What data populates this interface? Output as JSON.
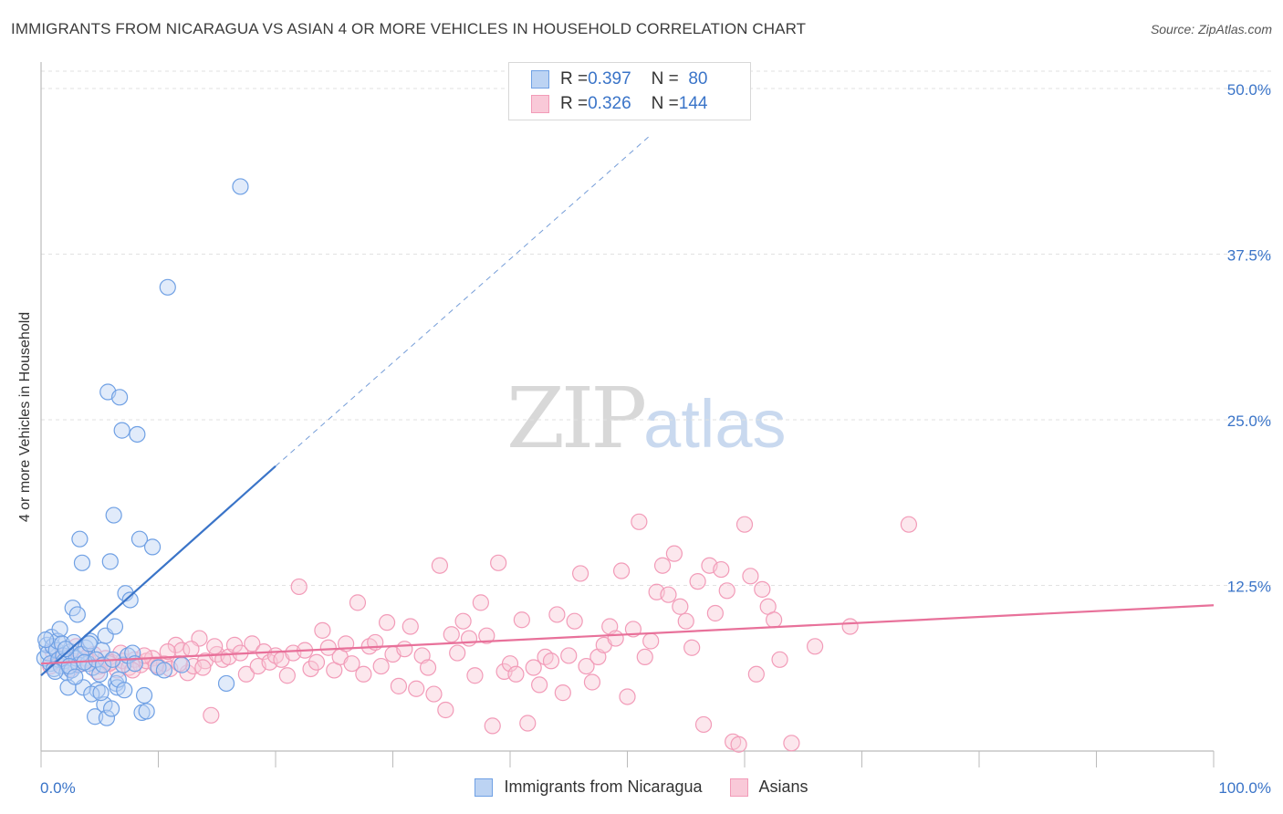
{
  "header": {
    "title": "IMMIGRANTS FROM NICARAGUA VS ASIAN 4 OR MORE VEHICLES IN HOUSEHOLD CORRELATION CHART",
    "source": "Source: ZipAtlas.com"
  },
  "watermark": {
    "zip": "ZIP",
    "atlas": "atlas"
  },
  "legend": {
    "rows": [
      {
        "r_label": "R = ",
        "r_value": "0.397",
        "n_label": "N = ",
        "n_value": "80"
      },
      {
        "r_label": "R = ",
        "r_value": "0.326",
        "n_label": "N = ",
        "n_value": "144"
      }
    ]
  },
  "chart_data": {
    "type": "scatter",
    "title": "IMMIGRANTS FROM NICARAGUA VS ASIAN 4 OR MORE VEHICLES IN HOUSEHOLD CORRELATION CHART",
    "xlabel": "",
    "ylabel": "4 or more Vehicles in Household",
    "xlim": [
      0,
      100
    ],
    "ylim": [
      0,
      52
    ],
    "x_tick_labels": [
      "0.0%",
      "100.0%"
    ],
    "y_tick_labels": [
      "12.5%",
      "25.0%",
      "37.5%",
      "50.0%"
    ],
    "y_ticks": [
      12.5,
      25.0,
      37.5,
      50.0
    ],
    "grid": true,
    "legend_placement": "top-center",
    "colors": {
      "nicaragua": "#6fa0e4",
      "asians": "#f29bb8",
      "nicaragua_line": "#3a74c8",
      "asians_line": "#e8719a",
      "tick_text": "#3a74c8"
    },
    "series": [
      {
        "name": "Immigrants from Nicaragua",
        "trend": {
          "x": [
            0,
            20
          ],
          "y": [
            5.7,
            21.5
          ],
          "dashed_to": [
            52,
            46.5
          ]
        },
        "points": [
          [
            0.3,
            7.0
          ],
          [
            0.5,
            8.0
          ],
          [
            0.6,
            7.4
          ],
          [
            0.8,
            6.6
          ],
          [
            0.9,
            8.6
          ],
          [
            1.0,
            7.9
          ],
          [
            1.1,
            6.2
          ],
          [
            1.3,
            7.6
          ],
          [
            1.4,
            8.3
          ],
          [
            1.5,
            6.9
          ],
          [
            1.6,
            9.2
          ],
          [
            1.7,
            6.4
          ],
          [
            1.8,
            8.1
          ],
          [
            1.9,
            7.2
          ],
          [
            2.0,
            6.8
          ],
          [
            2.2,
            5.9
          ],
          [
            2.3,
            4.8
          ],
          [
            2.5,
            7.5
          ],
          [
            2.6,
            6.1
          ],
          [
            2.7,
            10.8
          ],
          [
            2.8,
            8.2
          ],
          [
            3.0,
            7.0
          ],
          [
            3.1,
            10.3
          ],
          [
            3.2,
            6.5
          ],
          [
            3.3,
            16.0
          ],
          [
            3.5,
            14.2
          ],
          [
            3.6,
            4.8
          ],
          [
            3.8,
            7.8
          ],
          [
            4.0,
            6.6
          ],
          [
            4.2,
            8.3
          ],
          [
            4.4,
            6.3
          ],
          [
            4.6,
            2.6
          ],
          [
            4.8,
            4.6
          ],
          [
            5.0,
            5.8
          ],
          [
            5.2,
            7.6
          ],
          [
            5.4,
            3.5
          ],
          [
            5.5,
            8.7
          ],
          [
            5.6,
            2.5
          ],
          [
            5.7,
            27.1
          ],
          [
            5.9,
            14.3
          ],
          [
            6.0,
            3.2
          ],
          [
            6.2,
            17.8
          ],
          [
            6.3,
            9.4
          ],
          [
            6.4,
            5.1
          ],
          [
            6.5,
            4.8
          ],
          [
            6.7,
            26.7
          ],
          [
            6.9,
            24.2
          ],
          [
            7.0,
            6.5
          ],
          [
            7.2,
            11.9
          ],
          [
            7.4,
            7.2
          ],
          [
            7.6,
            11.4
          ],
          [
            7.8,
            7.4
          ],
          [
            8.0,
            6.6
          ],
          [
            8.2,
            23.9
          ],
          [
            8.4,
            16.0
          ],
          [
            8.6,
            2.9
          ],
          [
            8.8,
            4.2
          ],
          [
            9.0,
            3.0
          ],
          [
            9.5,
            15.4
          ],
          [
            10.0,
            6.3
          ],
          [
            10.5,
            6.1
          ],
          [
            10.8,
            35.0
          ],
          [
            12.0,
            6.5
          ],
          [
            15.8,
            5.1
          ],
          [
            17.0,
            42.6
          ],
          [
            0.4,
            8.4
          ],
          [
            1.2,
            6.0
          ],
          [
            2.1,
            7.7
          ],
          [
            2.4,
            6.4
          ],
          [
            2.9,
            5.6
          ],
          [
            3.4,
            7.3
          ],
          [
            3.7,
            6.7
          ],
          [
            4.1,
            8.1
          ],
          [
            4.3,
            4.3
          ],
          [
            4.7,
            6.9
          ],
          [
            5.1,
            4.4
          ],
          [
            5.3,
            6.5
          ],
          [
            6.1,
            6.9
          ],
          [
            6.6,
            5.4
          ],
          [
            7.1,
            4.6
          ]
        ]
      },
      {
        "name": "Asians",
        "trend": {
          "x": [
            0,
            100
          ],
          "y": [
            6.6,
            11.0
          ]
        },
        "points": [
          [
            1.0,
            7.5
          ],
          [
            1.5,
            6.8
          ],
          [
            2.0,
            7.1
          ],
          [
            2.5,
            6.2
          ],
          [
            3.0,
            7.9
          ],
          [
            3.5,
            6.6
          ],
          [
            4.0,
            6.9
          ],
          [
            4.5,
            7.3
          ],
          [
            5.0,
            6.4
          ],
          [
            5.5,
            7.0
          ],
          [
            6.0,
            6.7
          ],
          [
            6.5,
            6.1
          ],
          [
            7.0,
            6.8
          ],
          [
            7.5,
            6.3
          ],
          [
            8.0,
            6.9
          ],
          [
            8.5,
            6.5
          ],
          [
            9.0,
            6.8
          ],
          [
            9.5,
            7.0
          ],
          [
            10.0,
            6.4
          ],
          [
            10.5,
            6.6
          ],
          [
            11.0,
            6.2
          ],
          [
            11.5,
            8.0
          ],
          [
            12.0,
            7.6
          ],
          [
            12.5,
            5.9
          ],
          [
            13.0,
            6.4
          ],
          [
            13.5,
            8.5
          ],
          [
            14.0,
            6.8
          ],
          [
            14.5,
            2.7
          ],
          [
            15.0,
            7.3
          ],
          [
            15.5,
            6.9
          ],
          [
            16.0,
            7.1
          ],
          [
            16.5,
            8.0
          ],
          [
            17.0,
            7.4
          ],
          [
            17.5,
            5.8
          ],
          [
            18.0,
            8.1
          ],
          [
            18.5,
            6.4
          ],
          [
            19.0,
            7.5
          ],
          [
            19.5,
            6.7
          ],
          [
            20.0,
            7.2
          ],
          [
            20.5,
            6.9
          ],
          [
            21.0,
            5.7
          ],
          [
            21.5,
            7.4
          ],
          [
            22.0,
            12.4
          ],
          [
            22.5,
            7.6
          ],
          [
            23.0,
            6.2
          ],
          [
            23.5,
            6.7
          ],
          [
            24.0,
            9.1
          ],
          [
            24.5,
            7.8
          ],
          [
            25.0,
            6.1
          ],
          [
            25.5,
            7.1
          ],
          [
            26.0,
            8.1
          ],
          [
            26.5,
            6.6
          ],
          [
            27.0,
            11.2
          ],
          [
            27.5,
            5.8
          ],
          [
            28.0,
            7.9
          ],
          [
            28.5,
            8.2
          ],
          [
            29.0,
            6.4
          ],
          [
            29.5,
            9.7
          ],
          [
            30.0,
            7.3
          ],
          [
            30.5,
            4.9
          ],
          [
            31.0,
            7.7
          ],
          [
            31.5,
            9.4
          ],
          [
            32.0,
            4.7
          ],
          [
            32.5,
            7.2
          ],
          [
            33.0,
            6.3
          ],
          [
            33.5,
            4.3
          ],
          [
            34.0,
            14.0
          ],
          [
            34.5,
            3.1
          ],
          [
            35.0,
            8.8
          ],
          [
            35.5,
            7.4
          ],
          [
            36.0,
            9.8
          ],
          [
            36.5,
            8.5
          ],
          [
            37.0,
            5.7
          ],
          [
            37.5,
            11.2
          ],
          [
            38.0,
            8.7
          ],
          [
            38.5,
            1.9
          ],
          [
            39.0,
            14.2
          ],
          [
            39.5,
            6.0
          ],
          [
            40.0,
            6.6
          ],
          [
            40.5,
            5.8
          ],
          [
            41.0,
            9.9
          ],
          [
            41.5,
            2.1
          ],
          [
            42.0,
            6.3
          ],
          [
            42.5,
            5.0
          ],
          [
            43.0,
            7.1
          ],
          [
            43.5,
            6.8
          ],
          [
            44.0,
            10.3
          ],
          [
            44.5,
            4.4
          ],
          [
            45.0,
            7.2
          ],
          [
            45.5,
            9.8
          ],
          [
            46.0,
            13.4
          ],
          [
            46.5,
            6.4
          ],
          [
            47.0,
            5.2
          ],
          [
            47.5,
            7.1
          ],
          [
            48.0,
            8.0
          ],
          [
            48.5,
            9.4
          ],
          [
            49.0,
            8.5
          ],
          [
            49.5,
            13.6
          ],
          [
            50.0,
            4.1
          ],
          [
            50.5,
            9.2
          ],
          [
            51.0,
            17.3
          ],
          [
            51.5,
            7.1
          ],
          [
            52.0,
            8.3
          ],
          [
            52.5,
            12.0
          ],
          [
            53.0,
            14.0
          ],
          [
            53.5,
            11.8
          ],
          [
            54.0,
            14.9
          ],
          [
            54.5,
            10.9
          ],
          [
            55.0,
            9.8
          ],
          [
            55.5,
            7.8
          ],
          [
            56.0,
            12.8
          ],
          [
            56.5,
            2.0
          ],
          [
            57.0,
            14.0
          ],
          [
            57.5,
            10.4
          ],
          [
            58.0,
            13.7
          ],
          [
            58.5,
            12.1
          ],
          [
            59.0,
            0.7
          ],
          [
            59.5,
            0.5
          ],
          [
            60.0,
            17.1
          ],
          [
            60.5,
            13.2
          ],
          [
            61.0,
            5.8
          ],
          [
            61.5,
            12.2
          ],
          [
            62.0,
            10.9
          ],
          [
            62.5,
            9.9
          ],
          [
            63.0,
            6.9
          ],
          [
            64.0,
            0.6
          ],
          [
            66.0,
            7.9
          ],
          [
            69.0,
            9.4
          ],
          [
            74.0,
            17.1
          ],
          [
            0.8,
            6.4
          ],
          [
            1.8,
            7.2
          ],
          [
            2.8,
            6.6
          ],
          [
            3.8,
            7.0
          ],
          [
            4.8,
            6.0
          ],
          [
            5.8,
            6.6
          ],
          [
            6.8,
            7.4
          ],
          [
            7.8,
            6.1
          ],
          [
            8.8,
            7.2
          ],
          [
            9.8,
            6.5
          ],
          [
            10.8,
            7.5
          ],
          [
            11.8,
            6.6
          ],
          [
            12.8,
            7.7
          ],
          [
            13.8,
            6.3
          ],
          [
            14.8,
            7.9
          ]
        ]
      }
    ]
  },
  "axes": {
    "ylabel": "4 or more Vehicles in Household",
    "y_ticks": [
      {
        "label": "50.0%",
        "value": 50.0
      },
      {
        "label": "37.5%",
        "value": 37.5
      },
      {
        "label": "25.0%",
        "value": 25.0
      },
      {
        "label": "12.5%",
        "value": 12.5
      }
    ],
    "x_ticks": [
      {
        "label": "0.0%"
      },
      {
        "label": "100.0%"
      }
    ]
  },
  "bottom_legend": {
    "items": [
      {
        "label": "Immigrants from Nicaragua"
      },
      {
        "label": "Asians"
      }
    ]
  }
}
